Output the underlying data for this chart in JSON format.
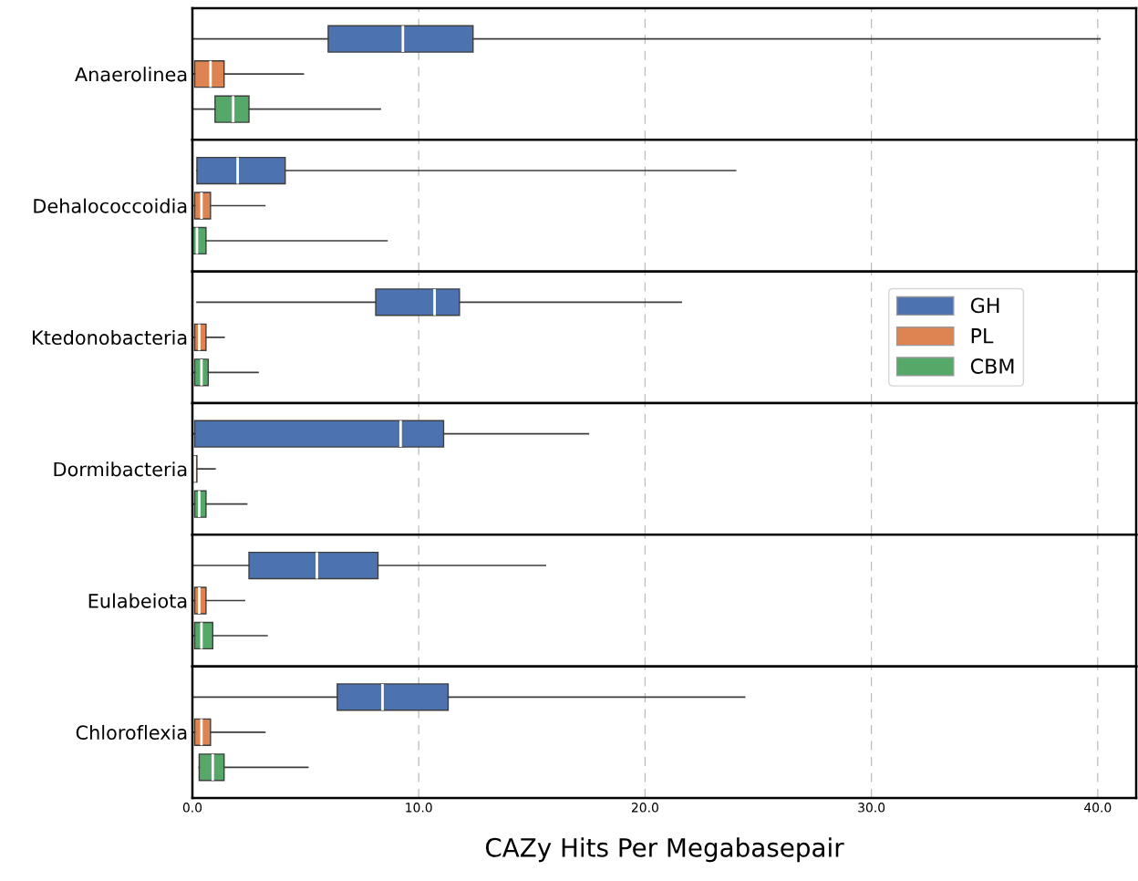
{
  "chart_data": [
    {
      "type": "box",
      "orientation": "horizontal",
      "categories": [
        "Anaerolinea"
      ],
      "xlim": [
        0,
        41.7
      ],
      "xticks": [
        {
          "value": 0,
          "label": null
        },
        {
          "value": 10,
          "label": null
        },
        {
          "value": 20,
          "label": null
        },
        {
          "value": 30,
          "label": null
        },
        {
          "value": 40,
          "label": null
        }
      ],
      "grid": "x",
      "tick_labels": "y",
      "series": [
        {
          "color": "#4c72b0",
          "boxes": [
            {
              "low": 0,
              "q1": 6.0,
              "median": 9.3,
              "q3": 12.4,
              "high": 40.1
            }
          ]
        },
        {
          "color": "#dd8452",
          "boxes": [
            {
              "low": 0,
              "q1": 0.1,
              "median": 0.8,
              "q3": 1.4,
              "high": 4.9
            }
          ]
        },
        {
          "color": "#55a868",
          "boxes": [
            {
              "low": 0,
              "q1": 1.0,
              "median": 1.8,
              "q3": 2.5,
              "high": 8.3
            }
          ]
        }
      ]
    },
    {
      "type": "box",
      "orientation": "horizontal",
      "categories": [
        "Dehalococcoidia"
      ],
      "xlim": [
        0,
        41.7
      ],
      "xticks": [
        {
          "value": 0,
          "label": null
        },
        {
          "value": 10,
          "label": null
        },
        {
          "value": 20,
          "label": null
        },
        {
          "value": 30,
          "label": null
        },
        {
          "value": 40,
          "label": null
        }
      ],
      "grid": "x",
      "tick_labels": "y",
      "series": [
        {
          "color": "#4c72b0",
          "boxes": [
            {
              "low": 0.2,
              "q1": 0.2,
              "median": 2.0,
              "q3": 4.1,
              "high": 24.0
            }
          ]
        },
        {
          "color": "#dd8452",
          "boxes": [
            {
              "low": 0,
              "q1": 0.1,
              "median": 0.4,
              "q3": 0.8,
              "high": 3.2
            }
          ]
        },
        {
          "color": "#55a868",
          "boxes": [
            {
              "low": 0,
              "q1": 0.0,
              "median": 0.2,
              "q3": 0.6,
              "high": 8.6
            }
          ]
        }
      ]
    },
    {
      "type": "box",
      "orientation": "horizontal",
      "categories": [
        "Ktedonobacteria"
      ],
      "xlim": [
        0,
        41.7
      ],
      "xticks": [
        {
          "value": 0,
          "label": null
        },
        {
          "value": 10,
          "label": null
        },
        {
          "value": 20,
          "label": null
        },
        {
          "value": 30,
          "label": null
        },
        {
          "value": 40,
          "label": null
        }
      ],
      "grid": "x",
      "tick_labels": "y",
      "legend": "right",
      "series": [
        {
          "name": "GH",
          "color": "#4c72b0",
          "boxes": [
            {
              "low": 0.2,
              "q1": 8.1,
              "median": 10.7,
              "q3": 11.8,
              "high": 21.6
            }
          ]
        },
        {
          "name": "PL",
          "color": "#dd8452",
          "boxes": [
            {
              "low": 0,
              "q1": 0.1,
              "median": 0.3,
              "q3": 0.6,
              "high": 1.4
            }
          ]
        },
        {
          "name": "CBM",
          "color": "#55a868",
          "boxes": [
            {
              "low": 0,
              "q1": 0.1,
              "median": 0.4,
              "q3": 0.7,
              "high": 2.9
            }
          ]
        }
      ]
    },
    {
      "type": "box",
      "orientation": "horizontal",
      "categories": [
        "Dormibacteria"
      ],
      "xlim": [
        0,
        41.7
      ],
      "xticks": [
        {
          "value": 0,
          "label": null
        },
        {
          "value": 10,
          "label": null
        },
        {
          "value": 20,
          "label": null
        },
        {
          "value": 30,
          "label": null
        },
        {
          "value": 40,
          "label": null
        }
      ],
      "grid": "x",
      "tick_labels": "y",
      "series": [
        {
          "color": "#4c72b0",
          "boxes": [
            {
              "low": 0,
              "q1": 0.1,
              "median": 9.2,
              "q3": 11.1,
              "high": 17.5
            }
          ]
        },
        {
          "color": "#dd8452",
          "boxes": [
            {
              "low": 0,
              "q1": 0.0,
              "median": 0.1,
              "q3": 0.2,
              "high": 1.0
            }
          ]
        },
        {
          "color": "#55a868",
          "boxes": [
            {
              "low": 0,
              "q1": 0.1,
              "median": 0.3,
              "q3": 0.6,
              "high": 2.4
            }
          ]
        }
      ]
    },
    {
      "type": "box",
      "orientation": "horizontal",
      "categories": [
        "Eulabeiota"
      ],
      "xlim": [
        0,
        41.7
      ],
      "xticks": [
        {
          "value": 0,
          "label": null
        },
        {
          "value": 10,
          "label": null
        },
        {
          "value": 20,
          "label": null
        },
        {
          "value": 30,
          "label": null
        },
        {
          "value": 40,
          "label": null
        }
      ],
      "grid": "x",
      "tick_labels": "y",
      "series": [
        {
          "color": "#4c72b0",
          "boxes": [
            {
              "low": 0,
              "q1": 2.5,
              "median": 5.5,
              "q3": 8.2,
              "high": 15.6
            }
          ]
        },
        {
          "color": "#dd8452",
          "boxes": [
            {
              "low": 0,
              "q1": 0.1,
              "median": 0.3,
              "q3": 0.6,
              "high": 2.3
            }
          ]
        },
        {
          "color": "#55a868",
          "boxes": [
            {
              "low": 0,
              "q1": 0.1,
              "median": 0.4,
              "q3": 0.9,
              "high": 3.3
            }
          ]
        }
      ]
    },
    {
      "type": "box",
      "orientation": "horizontal",
      "categories": [
        "Chloroflexia"
      ],
      "xlim": [
        0,
        41.7
      ],
      "xticks": [
        {
          "value": 0,
          "label": "0.0"
        },
        {
          "value": 10,
          "label": "10.0"
        },
        {
          "value": 20,
          "label": "20.0"
        },
        {
          "value": 30,
          "label": "30.0"
        },
        {
          "value": 40,
          "label": "40.0"
        }
      ],
      "grid": "x",
      "xlabel": "CAZy Hits Per Megabasepair",
      "series": [
        {
          "color": "#4c72b0",
          "boxes": [
            {
              "low": 0,
              "q1": 6.4,
              "median": 8.4,
              "q3": 11.3,
              "high": 24.4
            }
          ]
        },
        {
          "color": "#dd8452",
          "boxes": [
            {
              "low": 0,
              "q1": 0.1,
              "median": 0.4,
              "q3": 0.8,
              "high": 3.2
            }
          ]
        },
        {
          "color": "#55a868",
          "boxes": [
            {
              "low": 0.3,
              "q1": 0.3,
              "median": 0.9,
              "q3": 1.4,
              "high": 5.1
            }
          ]
        }
      ]
    }
  ]
}
